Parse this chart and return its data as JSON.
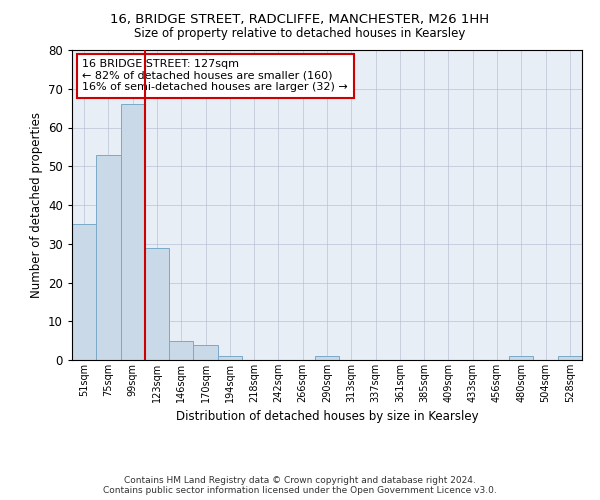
{
  "title_line1": "16, BRIDGE STREET, RADCLIFFE, MANCHESTER, M26 1HH",
  "title_line2": "Size of property relative to detached houses in Kearsley",
  "xlabel": "Distribution of detached houses by size in Kearsley",
  "ylabel": "Number of detached properties",
  "bar_labels": [
    "51sqm",
    "75sqm",
    "99sqm",
    "123sqm",
    "146sqm",
    "170sqm",
    "194sqm",
    "218sqm",
    "242sqm",
    "266sqm",
    "290sqm",
    "313sqm",
    "337sqm",
    "361sqm",
    "385sqm",
    "409sqm",
    "433sqm",
    "456sqm",
    "480sqm",
    "504sqm",
    "528sqm"
  ],
  "bar_values": [
    35,
    53,
    66,
    29,
    5,
    4,
    1,
    0,
    0,
    0,
    1,
    0,
    0,
    0,
    0,
    0,
    0,
    0,
    1,
    0,
    1
  ],
  "bar_color": "#c9d9e8",
  "bar_edge_color": "#7aaac8",
  "ylim": [
    0,
    80
  ],
  "yticks": [
    0,
    10,
    20,
    30,
    40,
    50,
    60,
    70,
    80
  ],
  "vline_x_index": 2.5,
  "vline_color": "#cc0000",
  "annotation_text": "16 BRIDGE STREET: 127sqm\n← 82% of detached houses are smaller (160)\n16% of semi-detached houses are larger (32) →",
  "annotation_box_color": "#ffffff",
  "annotation_box_edge": "#cc0000",
  "bg_color": "#e8eef5",
  "footer_line1": "Contains HM Land Registry data © Crown copyright and database right 2024.",
  "footer_line2": "Contains public sector information licensed under the Open Government Licence v3.0."
}
